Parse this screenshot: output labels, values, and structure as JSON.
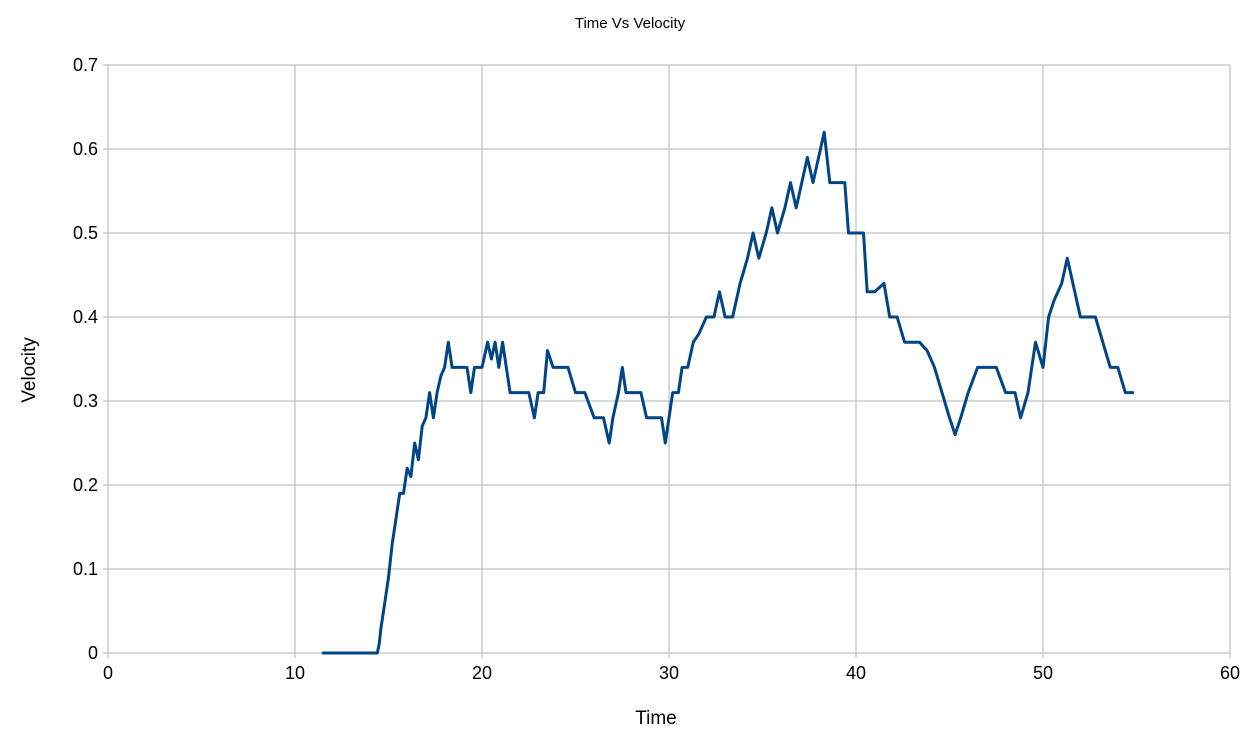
{
  "chart_data": {
    "type": "line",
    "title": "Time Vs Velocity",
    "xlabel": "Time",
    "ylabel": "Velocity",
    "xlim": [
      0,
      60
    ],
    "ylim": [
      0,
      0.7
    ],
    "x_ticks": [
      "0",
      "10",
      "20",
      "30",
      "40",
      "50",
      "60"
    ],
    "y_ticks": [
      "0",
      "0.1",
      "0.2",
      "0.3",
      "0.4",
      "0.5",
      "0.6",
      "0.7"
    ],
    "grid": true,
    "legend": "none",
    "colors": {
      "line": "#004586",
      "grid": "#b3b3b3",
      "axis": "#b3b3b3"
    },
    "series": [
      {
        "points": [
          [
            11.5,
            0
          ],
          [
            12.0,
            0
          ],
          [
            12.5,
            0
          ],
          [
            13.0,
            0
          ],
          [
            13.5,
            0
          ],
          [
            14.0,
            0
          ],
          [
            14.4,
            0
          ],
          [
            14.5,
            0.01
          ],
          [
            14.6,
            0.03
          ],
          [
            14.8,
            0.06
          ],
          [
            15.0,
            0.09
          ],
          [
            15.2,
            0.13
          ],
          [
            15.4,
            0.16
          ],
          [
            15.6,
            0.19
          ],
          [
            15.8,
            0.19
          ],
          [
            16.0,
            0.22
          ],
          [
            16.2,
            0.21
          ],
          [
            16.4,
            0.25
          ],
          [
            16.6,
            0.23
          ],
          [
            16.8,
            0.27
          ],
          [
            17.0,
            0.28
          ],
          [
            17.2,
            0.31
          ],
          [
            17.4,
            0.28
          ],
          [
            17.6,
            0.31
          ],
          [
            17.8,
            0.33
          ],
          [
            18.0,
            0.34
          ],
          [
            18.2,
            0.37
          ],
          [
            18.4,
            0.34
          ],
          [
            18.8,
            0.34
          ],
          [
            19.2,
            0.34
          ],
          [
            19.4,
            0.31
          ],
          [
            19.6,
            0.34
          ],
          [
            20.0,
            0.34
          ],
          [
            20.3,
            0.37
          ],
          [
            20.5,
            0.35
          ],
          [
            20.7,
            0.37
          ],
          [
            20.9,
            0.34
          ],
          [
            21.1,
            0.37
          ],
          [
            21.3,
            0.34
          ],
          [
            21.5,
            0.31
          ],
          [
            22.0,
            0.31
          ],
          [
            22.5,
            0.31
          ],
          [
            22.8,
            0.28
          ],
          [
            23.0,
            0.31
          ],
          [
            23.3,
            0.31
          ],
          [
            23.5,
            0.36
          ],
          [
            23.8,
            0.34
          ],
          [
            24.2,
            0.34
          ],
          [
            24.6,
            0.34
          ],
          [
            25.0,
            0.31
          ],
          [
            25.5,
            0.31
          ],
          [
            26.0,
            0.28
          ],
          [
            26.5,
            0.28
          ],
          [
            26.8,
            0.25
          ],
          [
            27.0,
            0.28
          ],
          [
            27.3,
            0.31
          ],
          [
            27.5,
            0.34
          ],
          [
            27.7,
            0.31
          ],
          [
            28.0,
            0.31
          ],
          [
            28.5,
            0.31
          ],
          [
            28.8,
            0.28
          ],
          [
            29.2,
            0.28
          ],
          [
            29.6,
            0.28
          ],
          [
            29.8,
            0.25
          ],
          [
            30.0,
            0.28
          ],
          [
            30.2,
            0.31
          ],
          [
            30.5,
            0.31
          ],
          [
            30.7,
            0.34
          ],
          [
            31.0,
            0.34
          ],
          [
            31.3,
            0.37
          ],
          [
            31.6,
            0.38
          ],
          [
            32.0,
            0.4
          ],
          [
            32.4,
            0.4
          ],
          [
            32.7,
            0.43
          ],
          [
            33.0,
            0.4
          ],
          [
            33.4,
            0.4
          ],
          [
            33.8,
            0.44
          ],
          [
            34.2,
            0.47
          ],
          [
            34.5,
            0.5
          ],
          [
            34.8,
            0.47
          ],
          [
            35.2,
            0.5
          ],
          [
            35.5,
            0.53
          ],
          [
            35.8,
            0.5
          ],
          [
            36.2,
            0.53
          ],
          [
            36.5,
            0.56
          ],
          [
            36.8,
            0.53
          ],
          [
            37.1,
            0.56
          ],
          [
            37.4,
            0.59
          ],
          [
            37.7,
            0.56
          ],
          [
            38.0,
            0.59
          ],
          [
            38.3,
            0.62
          ],
          [
            38.6,
            0.56
          ],
          [
            39.0,
            0.56
          ],
          [
            39.4,
            0.56
          ],
          [
            39.6,
            0.5
          ],
          [
            40.0,
            0.5
          ],
          [
            40.4,
            0.5
          ],
          [
            40.6,
            0.43
          ],
          [
            41.0,
            0.43
          ],
          [
            41.5,
            0.44
          ],
          [
            41.8,
            0.4
          ],
          [
            42.2,
            0.4
          ],
          [
            42.6,
            0.37
          ],
          [
            43.0,
            0.37
          ],
          [
            43.4,
            0.37
          ],
          [
            43.8,
            0.36
          ],
          [
            44.2,
            0.34
          ],
          [
            44.6,
            0.31
          ],
          [
            45.0,
            0.28
          ],
          [
            45.3,
            0.26
          ],
          [
            45.6,
            0.28
          ],
          [
            46.0,
            0.31
          ],
          [
            46.5,
            0.34
          ],
          [
            47.0,
            0.34
          ],
          [
            47.5,
            0.34
          ],
          [
            48.0,
            0.31
          ],
          [
            48.5,
            0.31
          ],
          [
            48.8,
            0.28
          ],
          [
            49.2,
            0.31
          ],
          [
            49.6,
            0.37
          ],
          [
            50.0,
            0.34
          ],
          [
            50.3,
            0.4
          ],
          [
            50.6,
            0.42
          ],
          [
            51.0,
            0.44
          ],
          [
            51.3,
            0.47
          ],
          [
            51.6,
            0.44
          ],
          [
            52.0,
            0.4
          ],
          [
            52.4,
            0.4
          ],
          [
            52.8,
            0.4
          ],
          [
            53.2,
            0.37
          ],
          [
            53.6,
            0.34
          ],
          [
            54.0,
            0.34
          ],
          [
            54.4,
            0.31
          ],
          [
            54.8,
            0.31
          ]
        ]
      }
    ]
  }
}
